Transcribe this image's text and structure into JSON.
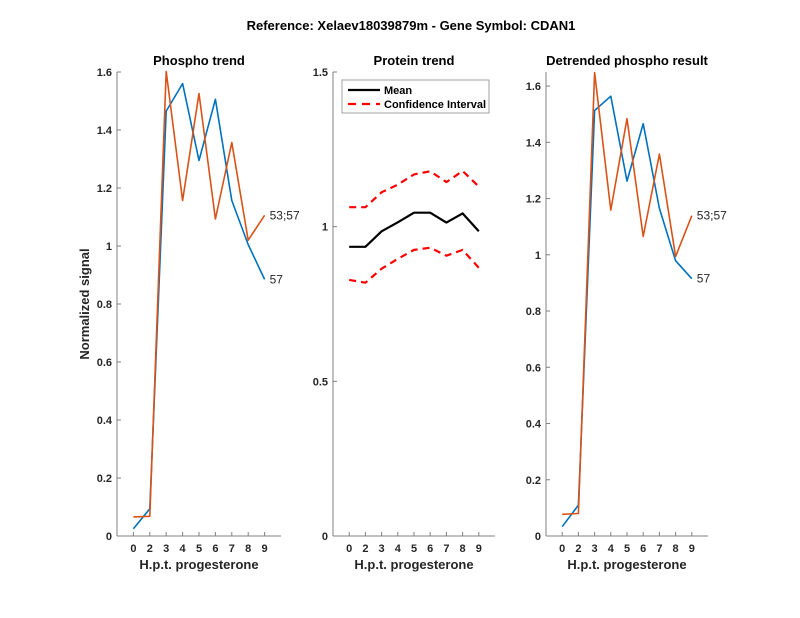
{
  "figure": {
    "suptitle": "Reference:  Xelaev18039879m - Gene Symbol:  CDAN1"
  },
  "colors": {
    "series_blue": "#0072BD",
    "series_orange": "#D95319",
    "mean": "#000000",
    "ci": "#FF0000",
    "axis": "#808080"
  },
  "chart_data": [
    {
      "type": "line",
      "title": "Phospho trend",
      "xlabel": "H.p.t. progesterone",
      "ylabel": "Normalized signal",
      "categories": [
        "0",
        "2",
        "3",
        "4",
        "5",
        "6",
        "7",
        "8",
        "9"
      ],
      "ylim": [
        0,
        1.6
      ],
      "yticks": [
        "0",
        "0.2",
        "0.4",
        "0.6",
        "0.8",
        "1",
        "1.2",
        "1.4",
        "1.6"
      ],
      "ytick_values": [
        0,
        0.2,
        0.4,
        0.6,
        0.8,
        1,
        1.2,
        1.4,
        1.6
      ],
      "grid": false,
      "series": [
        {
          "name": "57",
          "color": "#0072BD",
          "end_label": "57",
          "values": [
            0.025,
            0.094,
            1.465,
            1.56,
            1.295,
            1.506,
            1.157,
            1.005,
            0.885
          ]
        },
        {
          "name": "53;57",
          "color": "#D95319",
          "end_label": "53;57",
          "values": [
            0.066,
            0.068,
            1.602,
            1.157,
            1.526,
            1.093,
            1.357,
            1.02,
            1.106
          ]
        }
      ]
    },
    {
      "type": "line",
      "title": "Protein trend",
      "xlabel": "H.p.t. progesterone",
      "ylabel": "",
      "categories": [
        "0",
        "2",
        "3",
        "4",
        "5",
        "6",
        "7",
        "8",
        "9"
      ],
      "ylim": [
        0,
        1.5
      ],
      "yticks": [
        "0",
        "0.5",
        "1",
        "1.5"
      ],
      "ytick_values": [
        0,
        0.5,
        1,
        1.5
      ],
      "grid": false,
      "legend": {
        "placement": "top-left",
        "entries": [
          "Mean",
          "Confidence Interval"
        ]
      },
      "series": [
        {
          "name": "Mean",
          "color": "#000000",
          "style": "solid",
          "values": [
            0.935,
            0.935,
            0.985,
            1.014,
            1.045,
            1.045,
            1.013,
            1.043,
            0.985
          ]
        },
        {
          "name": "Confidence Interval (upper)",
          "color": "#FF0000",
          "style": "dashed",
          "values": [
            1.063,
            1.063,
            1.111,
            1.136,
            1.169,
            1.179,
            1.144,
            1.18,
            1.13
          ]
        },
        {
          "name": "Confidence Interval (lower)",
          "color": "#FF0000",
          "style": "dashed",
          "values": [
            0.828,
            0.819,
            0.864,
            0.896,
            0.925,
            0.932,
            0.906,
            0.925,
            0.867
          ]
        }
      ]
    },
    {
      "type": "line",
      "title": "Detrended phospho result",
      "xlabel": "H.p.t. progesterone",
      "ylabel": "",
      "categories": [
        "0",
        "2",
        "3",
        "4",
        "5",
        "6",
        "7",
        "8",
        "9"
      ],
      "ylim": [
        0,
        1.65
      ],
      "yticks": [
        "0",
        "0.2",
        "0.4",
        "0.6",
        "0.8",
        "1",
        "1.2",
        "1.4",
        "1.6"
      ],
      "ytick_values": [
        0,
        0.2,
        0.4,
        0.6,
        0.8,
        1,
        1.2,
        1.4,
        1.6
      ],
      "grid": false,
      "series": [
        {
          "name": "57",
          "color": "#0072BD",
          "end_label": "57",
          "values": [
            0.033,
            0.11,
            1.513,
            1.564,
            1.262,
            1.466,
            1.165,
            0.979,
            0.915
          ]
        },
        {
          "name": "53;57",
          "color": "#D95319",
          "end_label": "53;57",
          "values": [
            0.077,
            0.08,
            1.648,
            1.159,
            1.484,
            1.065,
            1.358,
            0.994,
            1.139
          ]
        }
      ]
    }
  ]
}
